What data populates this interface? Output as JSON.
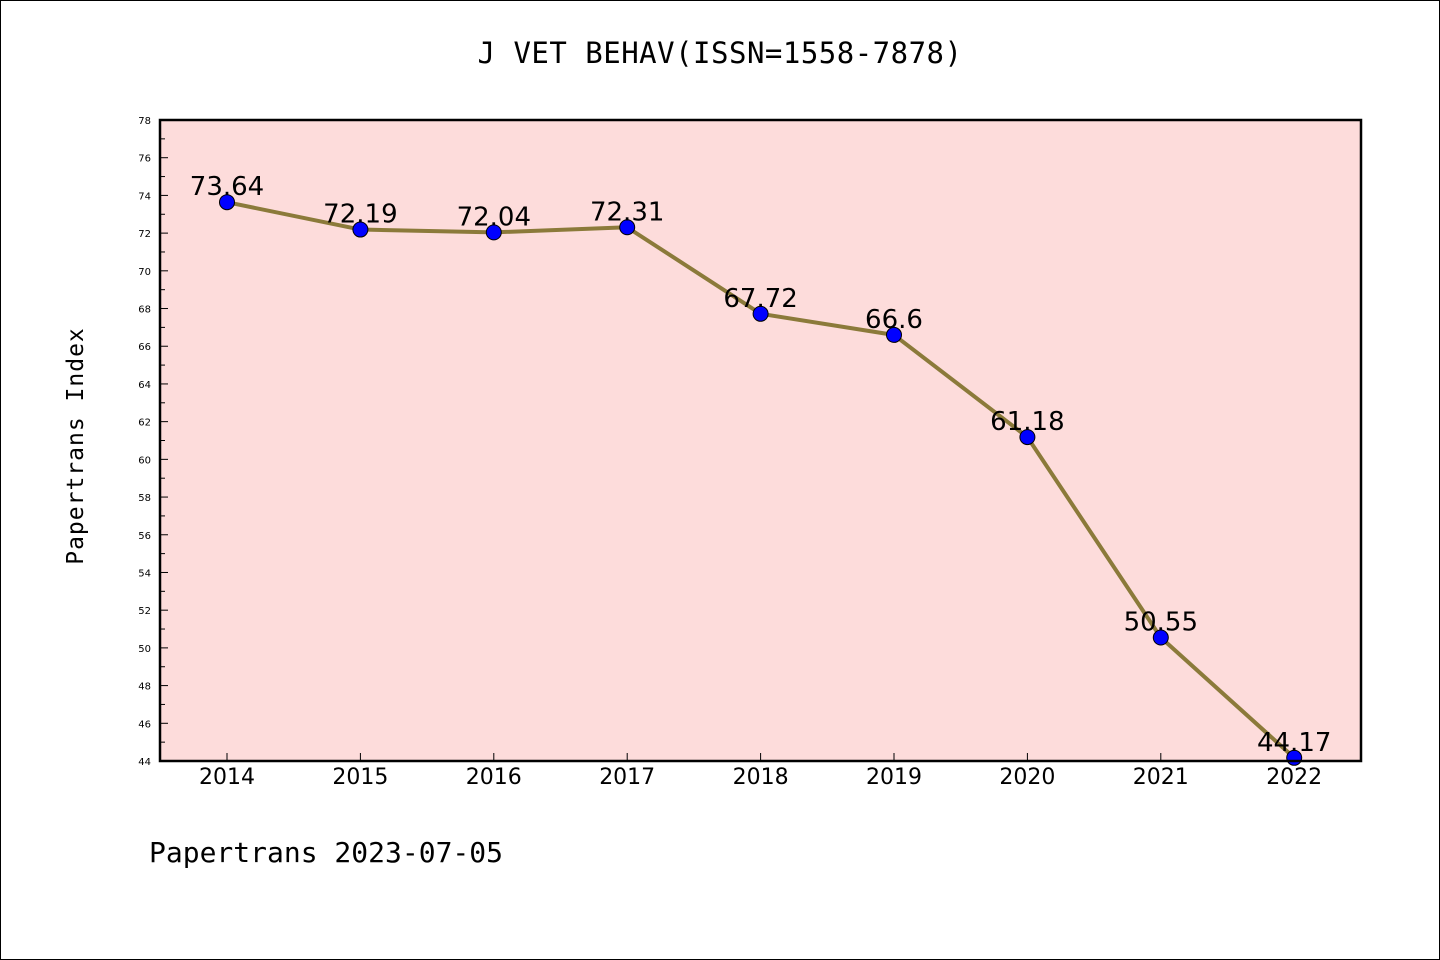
{
  "chart_data": {
    "type": "line",
    "title": "J VET BEHAV(ISSN=1558-7878)",
    "ylabel": "Papertrans Index",
    "xlabel": "",
    "footer": "Papertrans 2023-07-05",
    "x": [
      "2014",
      "2015",
      "2016",
      "2017",
      "2018",
      "2019",
      "2020",
      "2021",
      "2022"
    ],
    "series": [
      {
        "values": [
          73.64,
          72.19,
          72.04,
          72.31,
          67.72,
          66.6,
          61.18,
          50.55,
          44.17
        ],
        "labels": [
          "73.64",
          "72.19",
          "72.04",
          "72.31",
          "67.72",
          "66.6",
          "61.18",
          "50.55",
          "44.17"
        ],
        "line_color": "#8b7a3a",
        "marker_color": "#0000ff"
      }
    ],
    "ylim": [
      44,
      78
    ],
    "y_ticks": [
      "44",
      "46",
      "48",
      "50",
      "52",
      "54",
      "56",
      "58",
      "60",
      "62",
      "64",
      "66",
      "68",
      "70",
      "72",
      "74",
      "76",
      "78"
    ],
    "plot_background": "#fddcdb",
    "grid": false
  }
}
